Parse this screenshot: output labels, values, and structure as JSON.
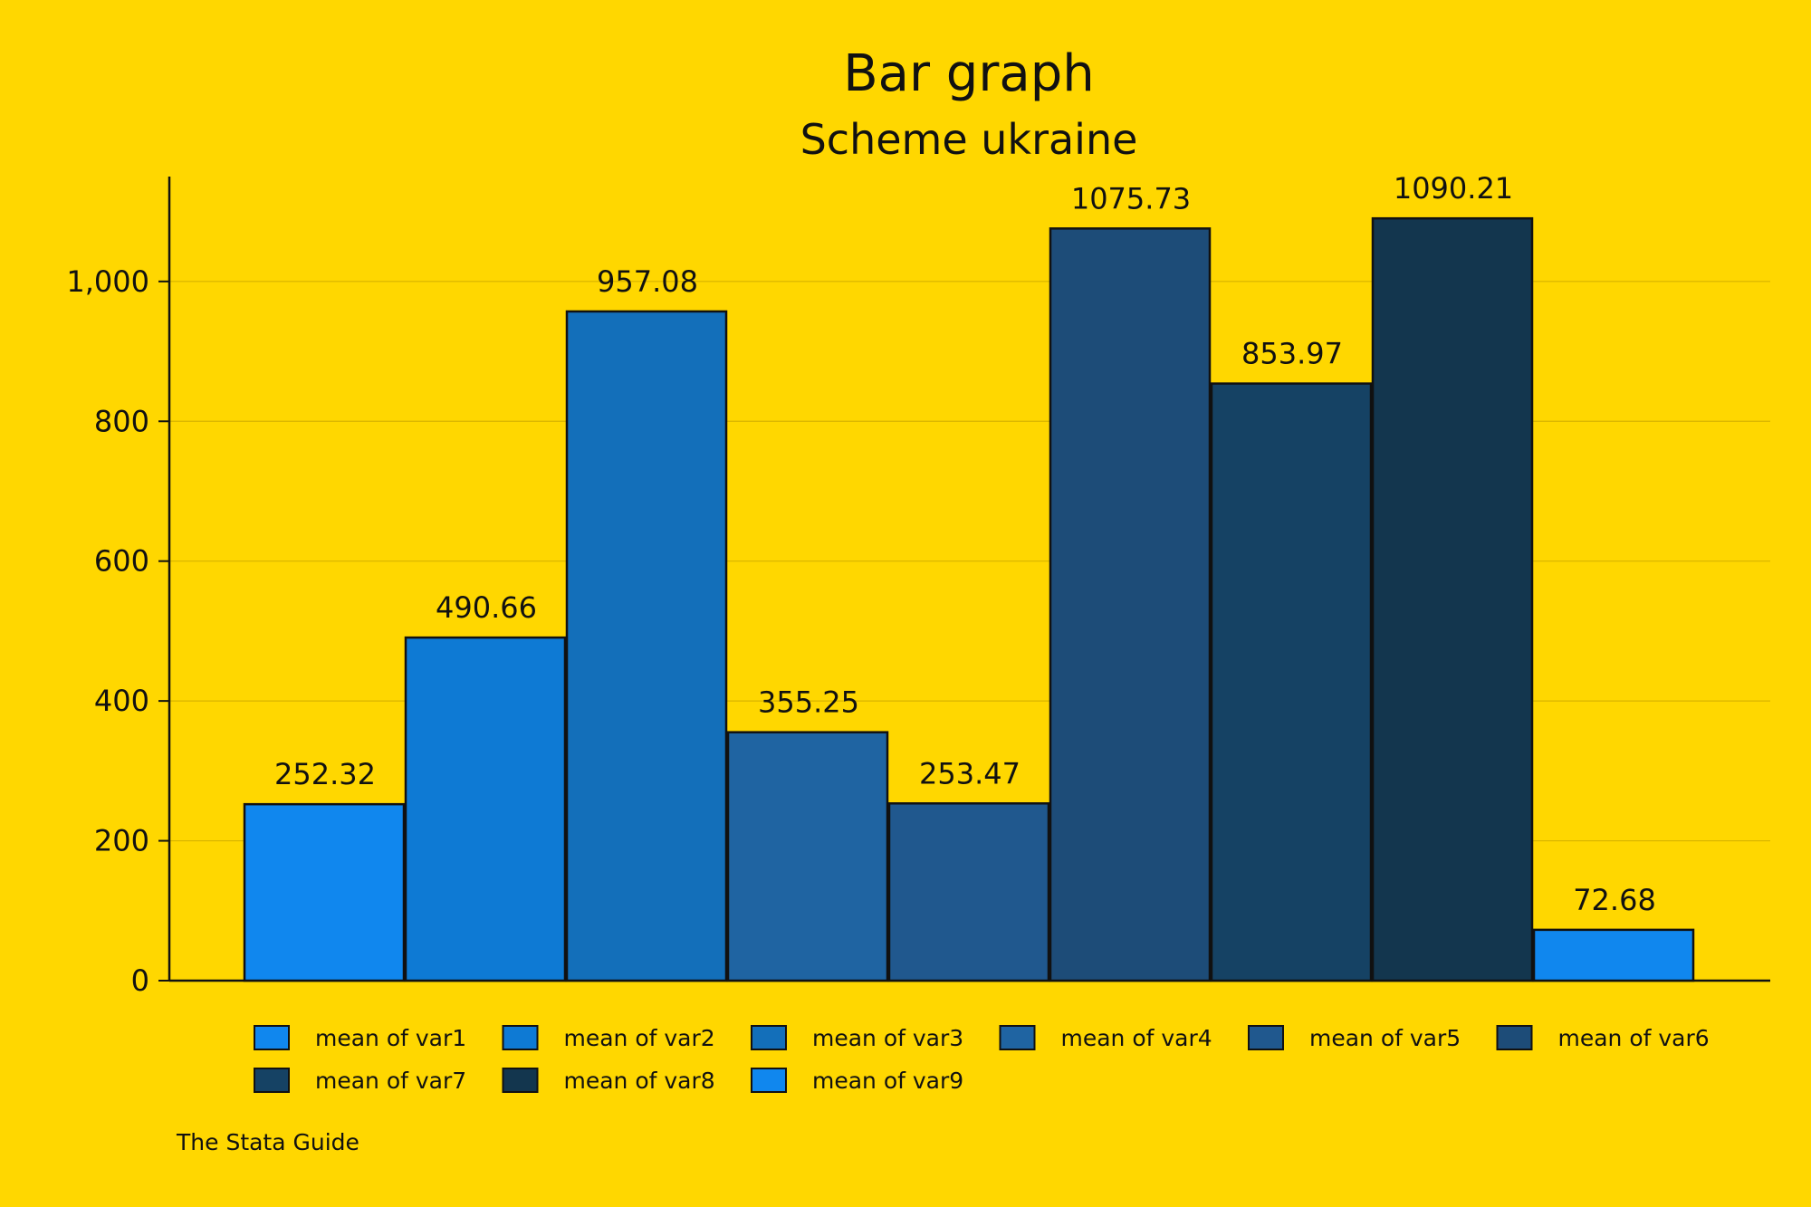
{
  "chart_data": {
    "type": "bar",
    "title": "Bar graph",
    "subtitle": "Scheme ukraine",
    "note": "The Stata Guide",
    "ylim": [
      0,
      1150
    ],
    "yticks": [
      0,
      200,
      400,
      600,
      800,
      1000
    ],
    "ytick_labels": [
      "0",
      "200",
      "400",
      "600",
      "800",
      "1,000"
    ],
    "grid": true,
    "legend_position": "bottom",
    "series": [
      {
        "name": "mean of var1",
        "value": 252.32,
        "label": "252.32",
        "color": "#1087EE"
      },
      {
        "name": "mean of var2",
        "value": 490.66,
        "label": "490.66",
        "color": "#0E7AD4"
      },
      {
        "name": "mean of var3",
        "value": 957.08,
        "label": "957.08",
        "color": "#136FBA"
      },
      {
        "name": "mean of var4",
        "value": 355.25,
        "label": "355.25",
        "color": "#1F64A2"
      },
      {
        "name": "mean of var5",
        "value": 253.47,
        "label": "253.47",
        "color": "#20588E"
      },
      {
        "name": "mean of var6",
        "value": 1075.73,
        "label": "1075.73",
        "color": "#1D4C78"
      },
      {
        "name": "mean of var7",
        "value": 853.97,
        "label": "853.97",
        "color": "#154264"
      },
      {
        "name": "mean of var8",
        "value": 1090.21,
        "label": "1090.21",
        "color": "#13364E"
      },
      {
        "name": "mean of var9",
        "value": 72.68,
        "label": "72.68",
        "color": "#1087EE"
      }
    ]
  }
}
